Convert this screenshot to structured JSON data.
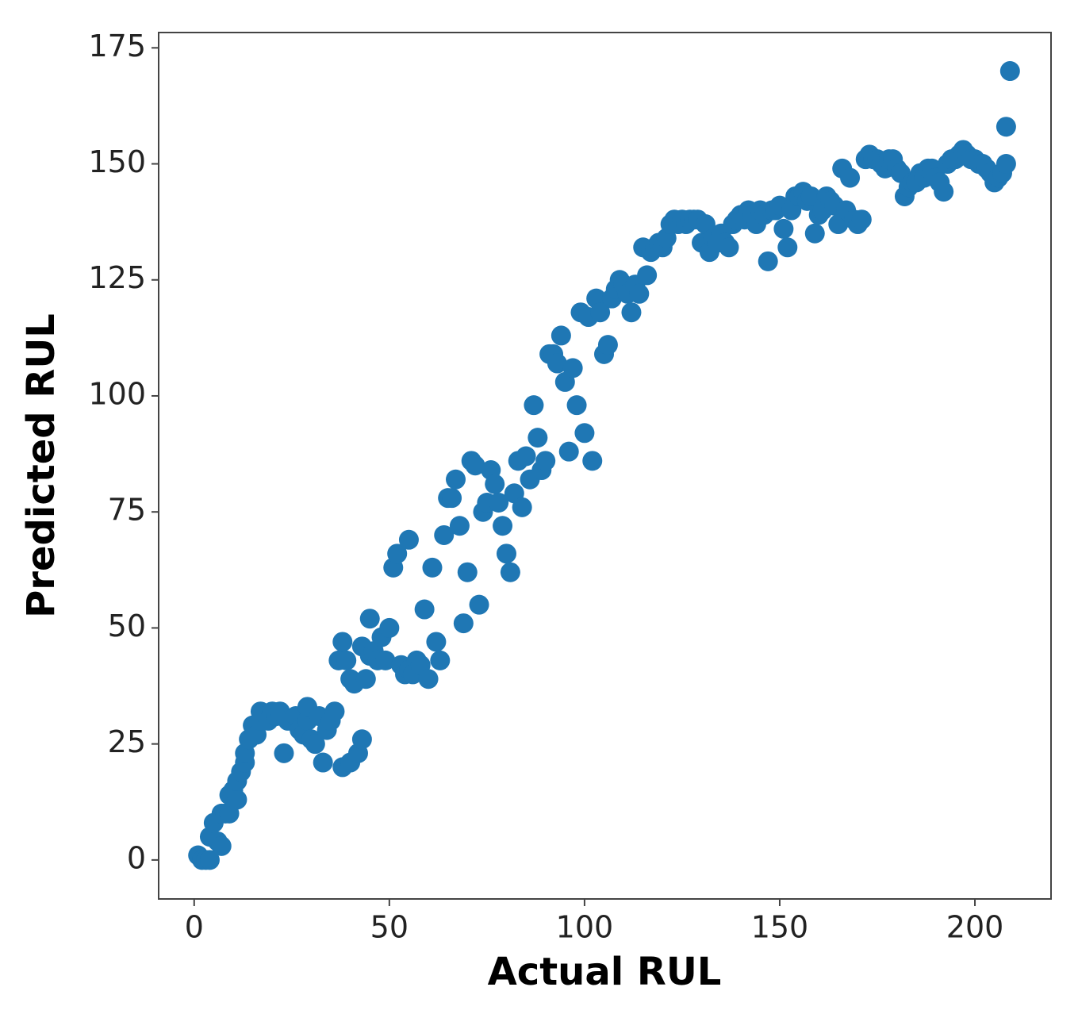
{
  "chart_data": {
    "type": "scatter",
    "x_label": "Actual RUL",
    "y_label": "Predicted RUL",
    "color": "#1f77b4",
    "xlim": [
      -9.1,
      219.5
    ],
    "ylim": [
      -8.4,
      178.3
    ],
    "xticks": [
      0,
      50,
      100,
      150,
      200
    ],
    "yticks": [
      0,
      25,
      50,
      75,
      100,
      125,
      150,
      175
    ],
    "x": [
      1,
      2,
      3,
      4,
      4,
      5,
      6,
      7,
      7,
      8,
      9,
      9,
      10,
      11,
      11,
      12,
      13,
      13,
      14,
      15,
      16,
      17,
      17,
      18,
      19,
      20,
      21,
      22,
      23,
      24,
      25,
      26,
      27,
      28,
      29,
      29,
      30,
      31,
      32,
      33,
      34,
      35,
      36,
      37,
      38,
      38,
      39,
      40,
      40,
      41,
      42,
      43,
      43,
      44,
      45,
      45,
      46,
      47,
      48,
      49,
      50,
      51,
      52,
      53,
      54,
      55,
      55,
      56,
      57,
      58,
      59,
      60,
      61,
      62,
      63,
      64,
      65,
      66,
      67,
      68,
      69,
      70,
      71,
      72,
      73,
      74,
      75,
      76,
      77,
      78,
      79,
      80,
      81,
      82,
      83,
      84,
      85,
      86,
      87,
      88,
      89,
      90,
      91,
      92,
      93,
      94,
      95,
      96,
      97,
      98,
      99,
      100,
      101,
      102,
      103,
      104,
      105,
      106,
      107,
      108,
      109,
      110,
      111,
      112,
      113,
      114,
      115,
      116,
      117,
      118,
      119,
      120,
      121,
      122,
      123,
      124,
      125,
      126,
      127,
      128,
      129,
      130,
      131,
      132,
      133,
      134,
      135,
      136,
      137,
      138,
      139,
      140,
      141,
      142,
      143,
      144,
      145,
      146,
      147,
      148,
      149,
      150,
      151,
      152,
      153,
      154,
      155,
      156,
      157,
      158,
      159,
      160,
      161,
      162,
      163,
      164,
      165,
      166,
      167,
      168,
      169,
      170,
      171,
      172,
      173,
      174,
      175,
      176,
      177,
      178,
      179,
      180,
      181,
      182,
      183,
      184,
      185,
      186,
      187,
      188,
      189,
      190,
      191,
      192,
      193,
      194,
      195,
      196,
      197,
      198,
      199,
      200,
      201,
      202,
      203,
      204,
      205,
      206,
      207,
      208,
      208,
      209
    ],
    "values": [
      1,
      0,
      0,
      0,
      5,
      8,
      4,
      3,
      10,
      10,
      10,
      14,
      15,
      13,
      17,
      19,
      21,
      23,
      26,
      29,
      27,
      30,
      32,
      31,
      30,
      32,
      31,
      32,
      23,
      30,
      30,
      31,
      28,
      27,
      30,
      33,
      26,
      25,
      31,
      21,
      28,
      30,
      32,
      43,
      47,
      20,
      43,
      39,
      21,
      38,
      23,
      26,
      46,
      39,
      52,
      44,
      45,
      43,
      48,
      43,
      50,
      63,
      66,
      42,
      40,
      69,
      41,
      40,
      43,
      42,
      54,
      39,
      63,
      47,
      43,
      70,
      78,
      78,
      82,
      72,
      51,
      62,
      86,
      85,
      55,
      75,
      77,
      84,
      81,
      77,
      72,
      66,
      62,
      79,
      86,
      76,
      87,
      82,
      98,
      91,
      84,
      86,
      109,
      109,
      107,
      113,
      103,
      88,
      106,
      98,
      118,
      92,
      117,
      86,
      121,
      118,
      109,
      111,
      121,
      123,
      125,
      124,
      122,
      118,
      124,
      122,
      132,
      126,
      131,
      132,
      133,
      132,
      134,
      137,
      138,
      137,
      138,
      137,
      138,
      138,
      138,
      133,
      137,
      131,
      134,
      133,
      135,
      133,
      132,
      137,
      138,
      139,
      138,
      140,
      139,
      137,
      140,
      139,
      129,
      140,
      140,
      141,
      136,
      132,
      140,
      143,
      143,
      144,
      142,
      143,
      135,
      139,
      140,
      143,
      142,
      141,
      137,
      149,
      140,
      147,
      138,
      137,
      138,
      151,
      152,
      151,
      151,
      150,
      149,
      151,
      151,
      149,
      148,
      143,
      145,
      146,
      146,
      148,
      147,
      149,
      149,
      147,
      146,
      144,
      150,
      151,
      151,
      152,
      153,
      152,
      151,
      151,
      150,
      150,
      149,
      148,
      146,
      147,
      148,
      150,
      158,
      170
    ]
  }
}
